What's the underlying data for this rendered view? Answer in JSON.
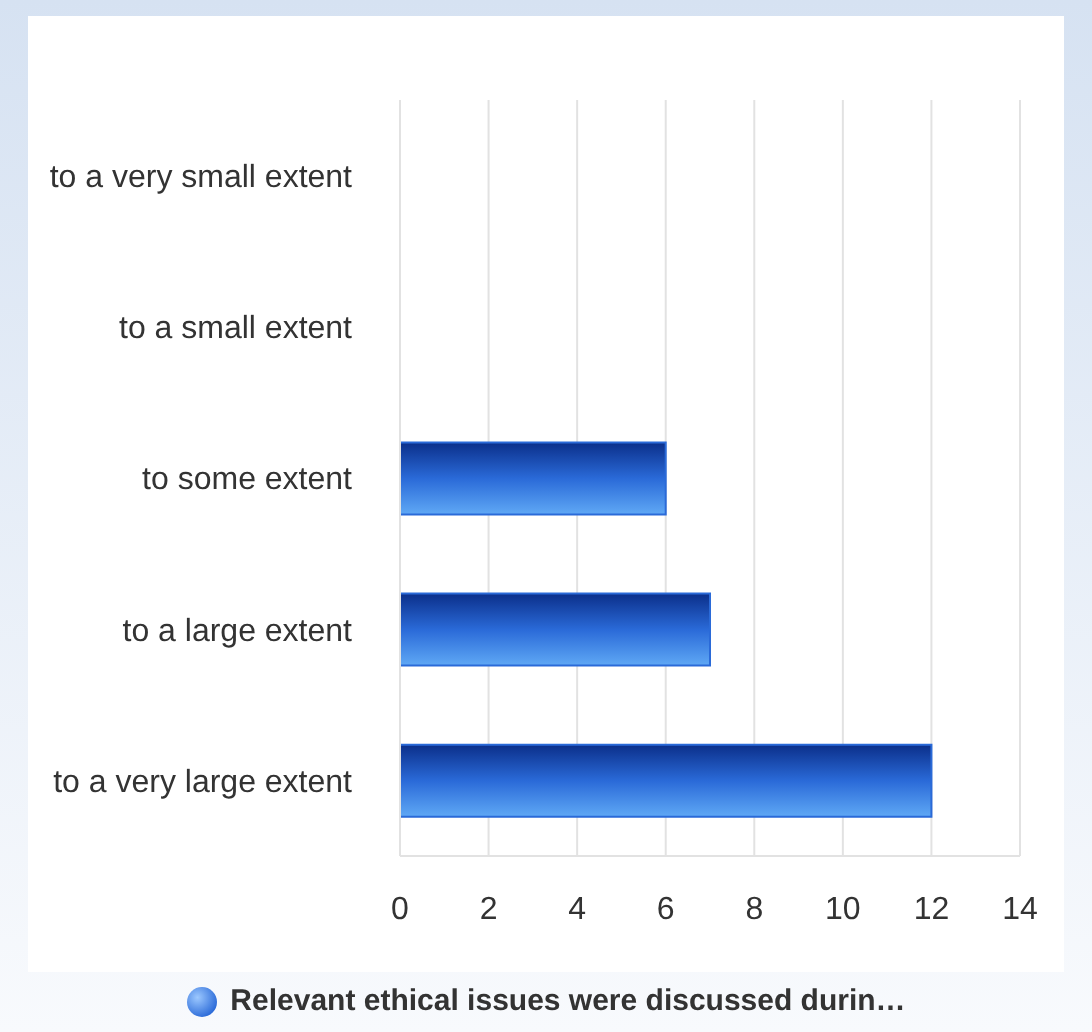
{
  "chart_data": {
    "type": "bar",
    "orientation": "horizontal",
    "categories": [
      "to a very small extent",
      "to a small extent",
      "to some extent",
      "to a large extent",
      "to a very large extent"
    ],
    "series": [
      {
        "name": "Relevant ethical issues were discussed durin…",
        "color": "#2a6ad8",
        "values": [
          0,
          0,
          6,
          7,
          12
        ]
      }
    ],
    "xlim": [
      0,
      14
    ],
    "xticks": [
      0,
      2,
      4,
      6,
      8,
      10,
      12,
      14
    ],
    "grid": "x",
    "legend": "bottom"
  }
}
